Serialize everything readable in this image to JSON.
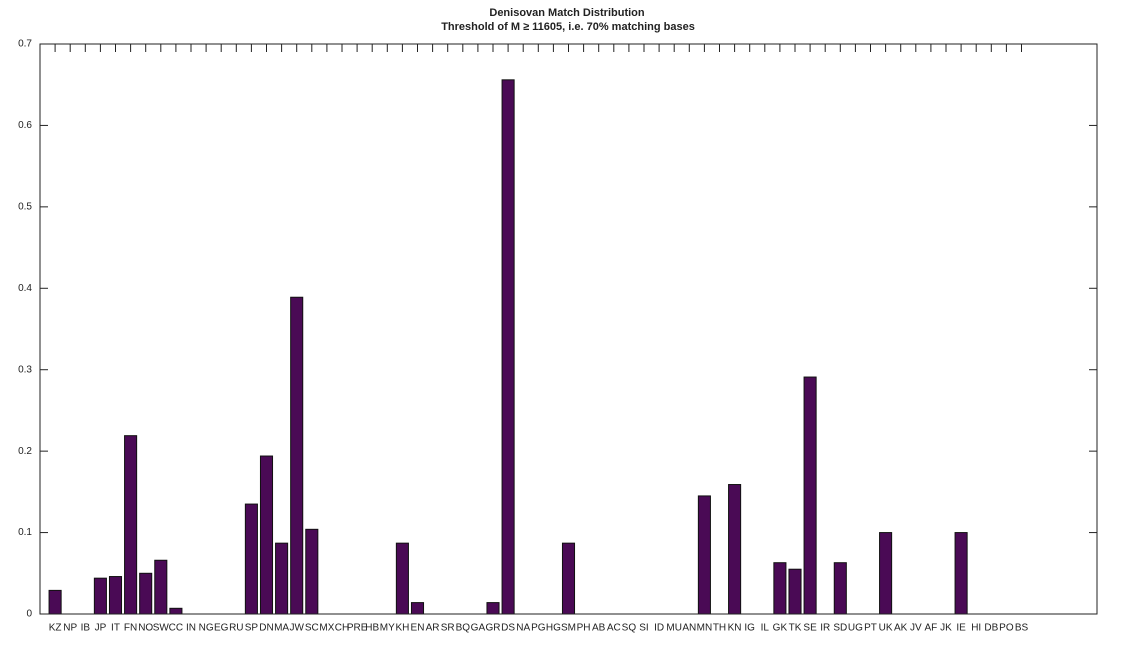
{
  "chart_data": {
    "type": "bar",
    "title": "Denisovan Match Distribution",
    "subtitle": "Threshold of M ≥ 11605, i.e. 70% matching bases",
    "categories": [
      "KZ",
      "NP",
      "IB",
      "JP",
      "IT",
      "FN",
      "NO",
      "SW",
      "CC",
      "IN",
      "NG",
      "EG",
      "RU",
      "SP",
      "DN",
      "MA",
      "JW",
      "SC",
      "MX",
      "CH",
      "PRE",
      "HB",
      "MY",
      "KH",
      "EN",
      "AR",
      "SR",
      "BQ",
      "GA",
      "GR",
      "DS",
      "NA",
      "PG",
      "HG",
      "SM",
      "PH",
      "AB",
      "AC",
      "SQ",
      "SI",
      "ID",
      "MU",
      "AN",
      "MN",
      "TH",
      "KN",
      "IG",
      "IL",
      "GK",
      "TK",
      "SE",
      "IR",
      "SD",
      "UG",
      "PT",
      "UK",
      "AK",
      "JV",
      "AF",
      "JK",
      "IE",
      "HI",
      "DB",
      "PO",
      "BS"
    ],
    "values": [
      0.029,
      0,
      0,
      0.044,
      0.046,
      0.219,
      0.05,
      0.066,
      0.007,
      0,
      0,
      0,
      0,
      0.135,
      0.194,
      0.087,
      0.389,
      0.104,
      0,
      0,
      0,
      0,
      0,
      0.087,
      0.014,
      0,
      0,
      0,
      0,
      0.014,
      0.656,
      0,
      0,
      0,
      0.087,
      0,
      0,
      0,
      0,
      0,
      0,
      0,
      0,
      0.145,
      0,
      0.159,
      0,
      0,
      0.063,
      0.055,
      0.291,
      0,
      0.063,
      0,
      0,
      0.1,
      0,
      0,
      0,
      0,
      0.1,
      0,
      0,
      0,
      0
    ],
    "color": "#4a0a55",
    "xlim": [
      0,
      70
    ],
    "ylim": [
      0,
      0.7
    ],
    "yticks": [
      0,
      0.1,
      0.2,
      0.3,
      0.4,
      0.5,
      0.6,
      0.7
    ],
    "grid": false
  }
}
